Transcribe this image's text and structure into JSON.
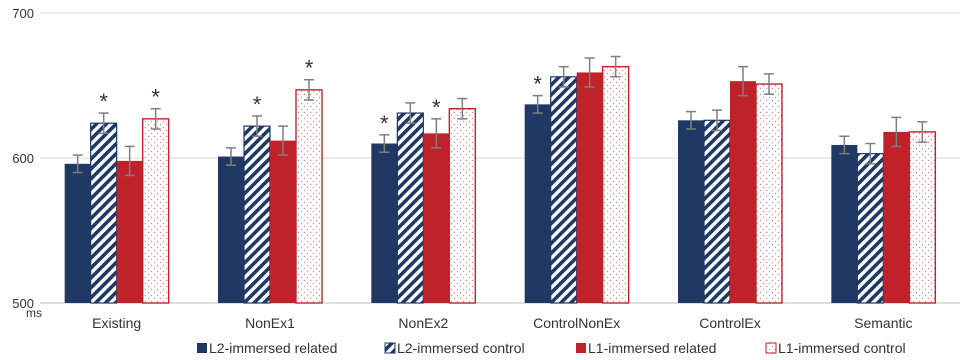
{
  "chart_data": {
    "type": "bar",
    "categories": [
      "Existing",
      "NonEx1",
      "NonEx2",
      "ControlNonEx",
      "ControlEx",
      "Semantic"
    ],
    "yticks": [
      500,
      600,
      700
    ],
    "ylim": [
      500,
      700
    ],
    "unit_label": "ms",
    "grid": true,
    "legend_position": "bottom",
    "series": [
      {
        "name": "L2-immersed related",
        "pattern": "solid-navy",
        "color": "#1f3864",
        "values": [
          596,
          601,
          610,
          637,
          626,
          609
        ],
        "errors": [
          6,
          6,
          6,
          6,
          6,
          6
        ]
      },
      {
        "name": "L2-immersed control",
        "pattern": "navy-diagonal-stripes",
        "color": "#1f3864",
        "values": [
          624,
          622,
          631,
          656,
          626,
          603
        ],
        "errors": [
          7,
          7,
          7,
          7,
          7,
          7
        ]
      },
      {
        "name": "L1-immersed related",
        "pattern": "solid-red",
        "color": "#c0222a",
        "values": [
          598,
          612,
          617,
          659,
          653,
          618
        ],
        "errors": [
          10,
          10,
          10,
          10,
          10,
          10
        ]
      },
      {
        "name": "L1-immersed control",
        "pattern": "red-dotted-outline",
        "color": "#c0222a",
        "values": [
          627,
          647,
          634,
          663,
          651,
          618
        ],
        "errors": [
          7,
          7,
          7,
          7,
          7,
          7
        ]
      }
    ],
    "annotations": [
      {
        "category": "Existing",
        "series": 1,
        "text": "*"
      },
      {
        "category": "Existing",
        "series": 3,
        "text": "*"
      },
      {
        "category": "NonEx1",
        "series": 1,
        "text": "*"
      },
      {
        "category": "NonEx1",
        "series": 3,
        "text": "*"
      },
      {
        "category": "NonEx2",
        "series": 0,
        "text": "*"
      },
      {
        "category": "NonEx2",
        "series": 2,
        "text": "*"
      },
      {
        "category": "ControlNonEx",
        "series": 0,
        "text": "*"
      }
    ]
  }
}
